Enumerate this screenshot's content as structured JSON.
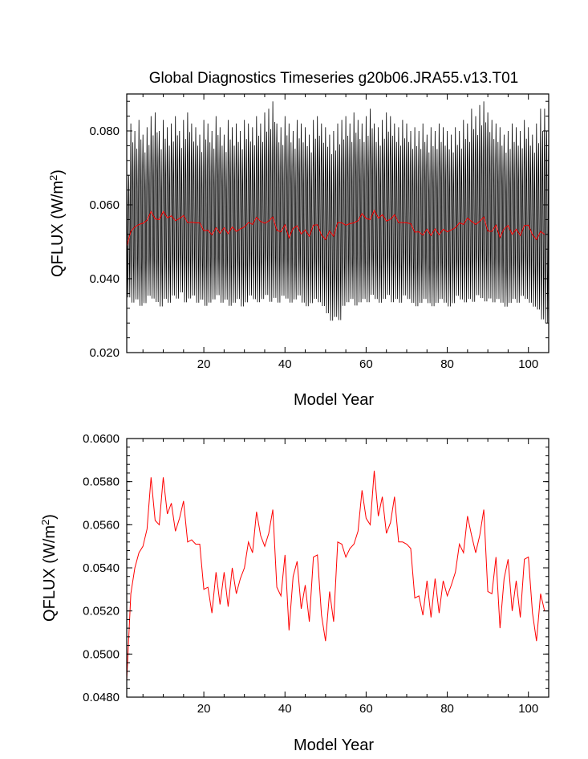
{
  "chart_data": [
    {
      "type": "line",
      "title": "Global Diagnostics Timeseries g20b06.JRA55.v13.T01",
      "xlabel": "Model Year",
      "ylabel_main": "QFLUX (W/m",
      "ylabel_sup": "2",
      "ylabel_end": ")",
      "xlim": [
        1,
        105
      ],
      "ylim": [
        0.02,
        0.09
      ],
      "xticks": [
        20,
        40,
        60,
        80,
        100
      ],
      "xtick_labels": [
        "20",
        "40",
        "60",
        "80",
        "100"
      ],
      "yticks": [
        0.02,
        0.04,
        0.06,
        0.08
      ],
      "ytick_labels": [
        "0.020",
        "0.040",
        "0.060",
        "0.080"
      ],
      "grid": false,
      "monthly_series": {
        "color": "#000000",
        "start_year": 1,
        "months_per_year": 12,
        "annual_max": [
          0.072,
          0.082,
          0.08,
          0.083,
          0.079,
          0.081,
          0.084,
          0.085,
          0.08,
          0.083,
          0.081,
          0.082,
          0.084,
          0.08,
          0.083,
          0.085,
          0.082,
          0.081,
          0.079,
          0.083,
          0.082,
          0.08,
          0.084,
          0.081,
          0.079,
          0.083,
          0.081,
          0.082,
          0.08,
          0.083,
          0.082,
          0.081,
          0.084,
          0.082,
          0.085,
          0.086,
          0.088,
          0.082,
          0.081,
          0.084,
          0.082,
          0.08,
          0.083,
          0.082,
          0.081,
          0.079,
          0.083,
          0.084,
          0.082,
          0.081,
          0.079,
          0.08,
          0.082,
          0.083,
          0.084,
          0.082,
          0.085,
          0.083,
          0.082,
          0.084,
          0.086,
          0.082,
          0.081,
          0.083,
          0.085,
          0.084,
          0.082,
          0.081,
          0.083,
          0.082,
          0.08,
          0.081,
          0.08,
          0.082,
          0.079,
          0.081,
          0.08,
          0.082,
          0.081,
          0.08,
          0.079,
          0.081,
          0.08,
          0.083,
          0.082,
          0.086,
          0.084,
          0.087,
          0.088,
          0.085,
          0.083,
          0.082,
          0.081,
          0.079,
          0.08,
          0.082,
          0.081,
          0.08,
          0.083,
          0.081,
          0.079,
          0.082,
          0.086,
          0.086,
          0.08
        ],
        "annual_min": [
          0.033,
          0.031,
          0.032,
          0.03,
          0.031,
          0.033,
          0.032,
          0.031,
          0.03,
          0.032,
          0.031,
          0.033,
          0.032,
          0.034,
          0.031,
          0.032,
          0.033,
          0.031,
          0.032,
          0.03,
          0.031,
          0.032,
          0.033,
          0.031,
          0.032,
          0.03,
          0.031,
          0.032,
          0.03,
          0.031,
          0.033,
          0.032,
          0.031,
          0.032,
          0.033,
          0.031,
          0.032,
          0.031,
          0.033,
          0.032,
          0.031,
          0.032,
          0.033,
          0.031,
          0.03,
          0.031,
          0.032,
          0.031,
          0.03,
          0.028,
          0.026,
          0.027,
          0.026,
          0.03,
          0.031,
          0.032,
          0.03,
          0.031,
          0.032,
          0.031,
          0.033,
          0.032,
          0.031,
          0.032,
          0.033,
          0.031,
          0.032,
          0.031,
          0.033,
          0.032,
          0.031,
          0.03,
          0.031,
          0.032,
          0.031,
          0.03,
          0.031,
          0.032,
          0.031,
          0.03,
          0.031,
          0.033,
          0.032,
          0.031,
          0.032,
          0.031,
          0.033,
          0.032,
          0.031,
          0.032,
          0.031,
          0.032,
          0.031,
          0.03,
          0.031,
          0.032,
          0.031,
          0.033,
          0.032,
          0.031,
          0.03,
          0.029,
          0.026,
          0.025,
          0.027
        ]
      }
    },
    {
      "type": "line",
      "title": "",
      "xlabel": "Model Year",
      "ylabel_main": "QFLUX (W/m",
      "ylabel_sup": "2",
      "ylabel_end": ")",
      "xlim": [
        1,
        105
      ],
      "ylim": [
        0.048,
        0.06
      ],
      "xticks": [
        20,
        40,
        60,
        80,
        100
      ],
      "xtick_labels": [
        "20",
        "40",
        "60",
        "80",
        "100"
      ],
      "yticks": [
        0.048,
        0.05,
        0.052,
        0.054,
        0.056,
        0.058,
        0.06
      ],
      "ytick_labels": [
        "0.0480",
        "0.0500",
        "0.0520",
        "0.0540",
        "0.0560",
        "0.0580",
        "0.0600"
      ],
      "grid": false,
      "series": [
        {
          "color": "#ff0000",
          "x_start": 1,
          "values": [
            0.0488,
            0.0528,
            0.054,
            0.0547,
            0.055,
            0.0558,
            0.0582,
            0.0562,
            0.056,
            0.0582,
            0.0565,
            0.057,
            0.0557,
            0.0563,
            0.0571,
            0.0552,
            0.0553,
            0.0551,
            0.0551,
            0.053,
            0.0531,
            0.0519,
            0.0538,
            0.0523,
            0.0538,
            0.0522,
            0.054,
            0.0528,
            0.0535,
            0.054,
            0.0552,
            0.0547,
            0.0566,
            0.0555,
            0.055,
            0.0556,
            0.0567,
            0.0531,
            0.0527,
            0.0546,
            0.0511,
            0.0536,
            0.0543,
            0.0521,
            0.0532,
            0.0515,
            0.0545,
            0.0546,
            0.0518,
            0.0506,
            0.0529,
            0.0515,
            0.0552,
            0.0551,
            0.0545,
            0.0549,
            0.0551,
            0.0557,
            0.0576,
            0.0563,
            0.056,
            0.0585,
            0.0564,
            0.0573,
            0.0556,
            0.0561,
            0.0573,
            0.0552,
            0.0552,
            0.0551,
            0.0549,
            0.0526,
            0.0527,
            0.0518,
            0.0534,
            0.0517,
            0.0535,
            0.0519,
            0.0534,
            0.0527,
            0.0532,
            0.0538,
            0.0551,
            0.0547,
            0.0564,
            0.0555,
            0.0547,
            0.0555,
            0.0567,
            0.0529,
            0.0528,
            0.0545,
            0.0512,
            0.0535,
            0.0544,
            0.052,
            0.0534,
            0.0517,
            0.0544,
            0.0545,
            0.0519,
            0.0506,
            0.0528,
            0.052
          ]
        }
      ]
    }
  ]
}
